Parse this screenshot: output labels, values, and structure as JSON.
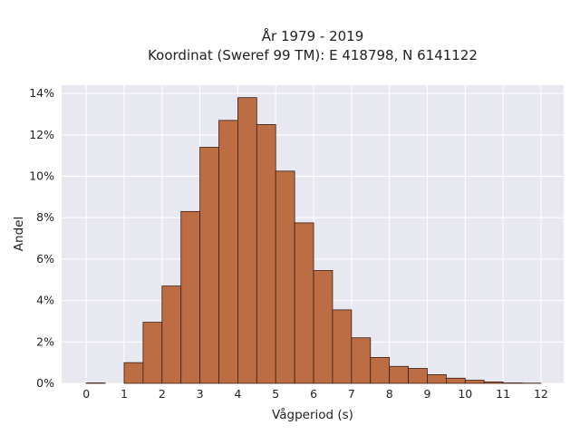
{
  "chart_data": {
    "type": "bar",
    "title": "År 1979 - 2019",
    "subtitle": "Koordinat (Sweref 99 TM): E 418798, N 6141122",
    "xlabel": "Vågperiod (s)",
    "ylabel": "Andel",
    "xlim": [
      -0.65,
      12.6
    ],
    "ylim": [
      0,
      14.4
    ],
    "xticks": [
      0,
      1,
      2,
      3,
      4,
      5,
      6,
      7,
      8,
      9,
      10,
      11,
      12
    ],
    "yticks": [
      0,
      2,
      4,
      6,
      8,
      10,
      12,
      14
    ],
    "ytick_suffix": "%",
    "grid": true,
    "bin_width": 0.5,
    "bin_starts": [
      0,
      0.5,
      1,
      1.5,
      2,
      2.5,
      3,
      3.5,
      4,
      4.5,
      5,
      5.5,
      6,
      6.5,
      7,
      7.5,
      8,
      8.5,
      9,
      9.5,
      10,
      10.5,
      11,
      11.5
    ],
    "values": [
      0.02,
      0.0,
      1.0,
      2.95,
      4.7,
      8.3,
      11.4,
      12.7,
      13.8,
      12.5,
      10.25,
      7.75,
      5.45,
      3.55,
      2.2,
      1.25,
      0.82,
      0.72,
      0.42,
      0.25,
      0.15,
      0.07,
      0.02,
      0.01
    ],
    "colors": {
      "bar_fill": "#bd6d43",
      "bar_stroke": "#3b1f10",
      "plot_bg": "#e8e8f0",
      "grid": "#ffffff"
    }
  }
}
